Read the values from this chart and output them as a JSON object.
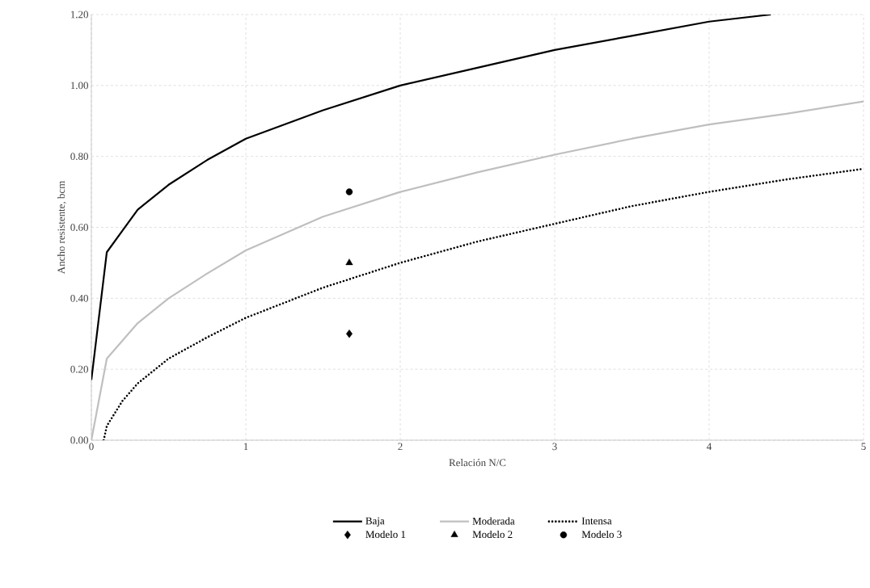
{
  "chart_data": {
    "type": "line",
    "xlabel": "Relación N/C",
    "ylabel": "Ancho resistente, bcm",
    "xlim": [
      0,
      5
    ],
    "ylim": [
      0,
      1.2
    ],
    "xticks": [
      0,
      1,
      2,
      3,
      4,
      5
    ],
    "yticks": [
      {
        "value": 0,
        "label": "0.00"
      },
      {
        "value": 0.2,
        "label": "0.20"
      },
      {
        "value": 0.4,
        "label": "0.40"
      },
      {
        "value": 0.6,
        "label": "0.60"
      },
      {
        "value": 0.8,
        "label": "0.80"
      },
      {
        "value": 1.0,
        "label": "1.00"
      },
      {
        "value": 1.2,
        "label": "1.20"
      }
    ],
    "grid": true,
    "legend": "bottom",
    "series": [
      {
        "name": "Baja",
        "color": "#000000",
        "line_style": "solid",
        "marker": "none",
        "x": [
          0,
          0.1,
          0.2,
          0.3,
          0.5,
          0.75,
          1,
          1.5,
          2,
          2.5,
          3,
          3.5,
          4,
          4.4
        ],
        "values": [
          0.17,
          0.53,
          0.59,
          0.65,
          0.72,
          0.79,
          0.85,
          0.93,
          1.0,
          1.05,
          1.1,
          1.14,
          1.18,
          1.2
        ]
      },
      {
        "name": "Moderada",
        "color": "#bfbfbf",
        "line_style": "solid",
        "marker": "none",
        "x": [
          0,
          0.1,
          0.2,
          0.3,
          0.5,
          0.75,
          1,
          1.5,
          2,
          2.5,
          3,
          3.5,
          4,
          4.5,
          5
        ],
        "values": [
          0,
          0.23,
          0.28,
          0.33,
          0.4,
          0.47,
          0.535,
          0.63,
          0.7,
          0.755,
          0.805,
          0.85,
          0.89,
          0.92,
          0.955
        ]
      },
      {
        "name": "Intensa",
        "color": "#000000",
        "line_style": "dotted",
        "marker": "none",
        "x": [
          0.08,
          0.1,
          0.2,
          0.3,
          0.5,
          0.75,
          1,
          1.5,
          2,
          2.5,
          3,
          3.5,
          4,
          4.5,
          5
        ],
        "values": [
          0,
          0.04,
          0.11,
          0.16,
          0.23,
          0.29,
          0.345,
          0.43,
          0.5,
          0.56,
          0.61,
          0.66,
          0.7,
          0.735,
          0.765
        ]
      },
      {
        "name": "Modelo 1",
        "type": "scatter",
        "color": "#000000",
        "marker": "diamond",
        "x": [
          1.67
        ],
        "values": [
          0.3
        ]
      },
      {
        "name": "Modelo 2",
        "type": "scatter",
        "color": "#000000",
        "marker": "triangle",
        "x": [
          1.67
        ],
        "values": [
          0.5
        ]
      },
      {
        "name": "Modelo 3",
        "type": "scatter",
        "color": "#000000",
        "marker": "circle",
        "x": [
          1.67
        ],
        "values": [
          0.7
        ]
      }
    ]
  }
}
